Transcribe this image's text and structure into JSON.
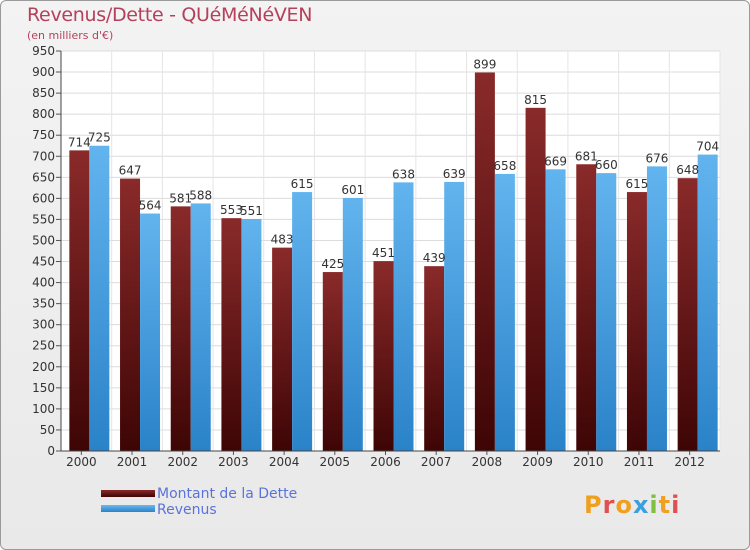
{
  "header": {
    "title": "Revenus/Dette - QUéMéNéVEN",
    "subtitle": "(en milliers d'€)"
  },
  "legend": {
    "items": [
      {
        "label": "Montant de la Dette",
        "color": "#6e1414"
      },
      {
        "label": "Revenus",
        "color": "#4aa3e8"
      }
    ]
  },
  "logo": {
    "text": "Proxiti"
  },
  "chart_data": {
    "type": "bar",
    "title": "Revenus/Dette - QUéMéNéVEN",
    "ylabel": "(en milliers d'€)",
    "xlabel": "",
    "categories": [
      "2000",
      "2001",
      "2002",
      "2003",
      "2004",
      "2005",
      "2006",
      "2007",
      "2008",
      "2009",
      "2010",
      "2011",
      "2012"
    ],
    "series": [
      {
        "name": "Montant de la Dette",
        "color": "#6e1414",
        "values": [
          714,
          647,
          581,
          553,
          483,
          425,
          451,
          439,
          899,
          815,
          681,
          615,
          648
        ]
      },
      {
        "name": "Revenus",
        "color": "#4aa3e8",
        "values": [
          725,
          564,
          588,
          551,
          615,
          601,
          638,
          639,
          658,
          669,
          660,
          676,
          704
        ]
      }
    ],
    "ylim": [
      0,
      950
    ],
    "ytick_step": 50,
    "grid": true,
    "legend_position": "bottom-left"
  }
}
